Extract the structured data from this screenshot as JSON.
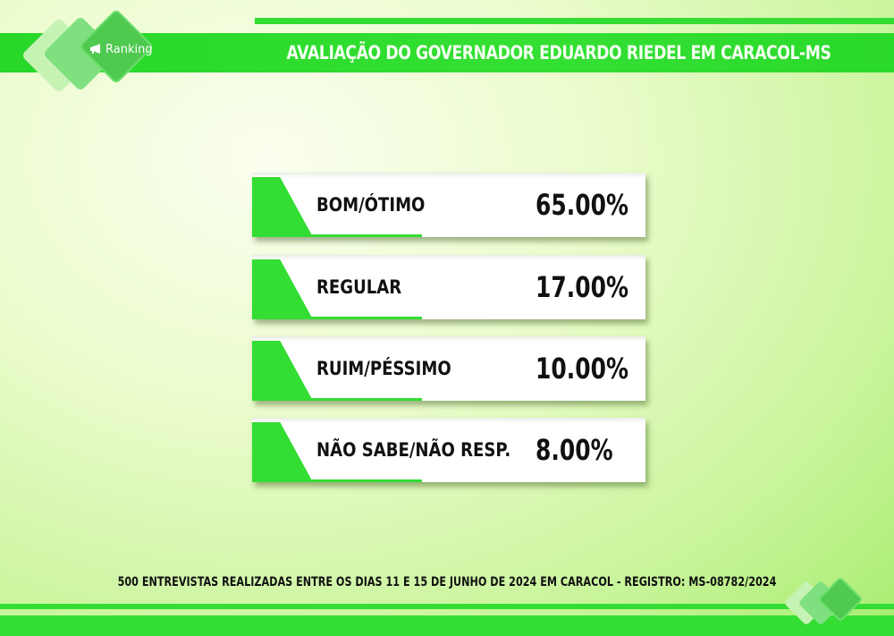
{
  "header": {
    "title": "AVALIAÇÃO DO GOVERNADOR EDUARDO RIEDEL EM CARACOL-MS",
    "logo_text": "Ranking",
    "logo_icon": "megaphone-icon"
  },
  "results": [
    {
      "label": "BOM/ÓTIMO",
      "value": "65.00%"
    },
    {
      "label": "REGULAR",
      "value": "17.00%"
    },
    {
      "label": "RUIM/PÉSSIMO",
      "value": "10.00%"
    },
    {
      "label": "NÃO SABE/NÃO RESP.",
      "value": "8.00%"
    }
  ],
  "footer": {
    "note": "500 ENTREVISTAS REALIZADAS ENTRE OS DIAS 11 E 15 DE JUNHO DE 2024 EM CARACOL - REGISTRO: MS-08782/2024"
  },
  "colors": {
    "accent_green": "#33dd33",
    "background": "#dff8b8",
    "text_dark": "#111111",
    "title_text": "#f3fff0"
  }
}
